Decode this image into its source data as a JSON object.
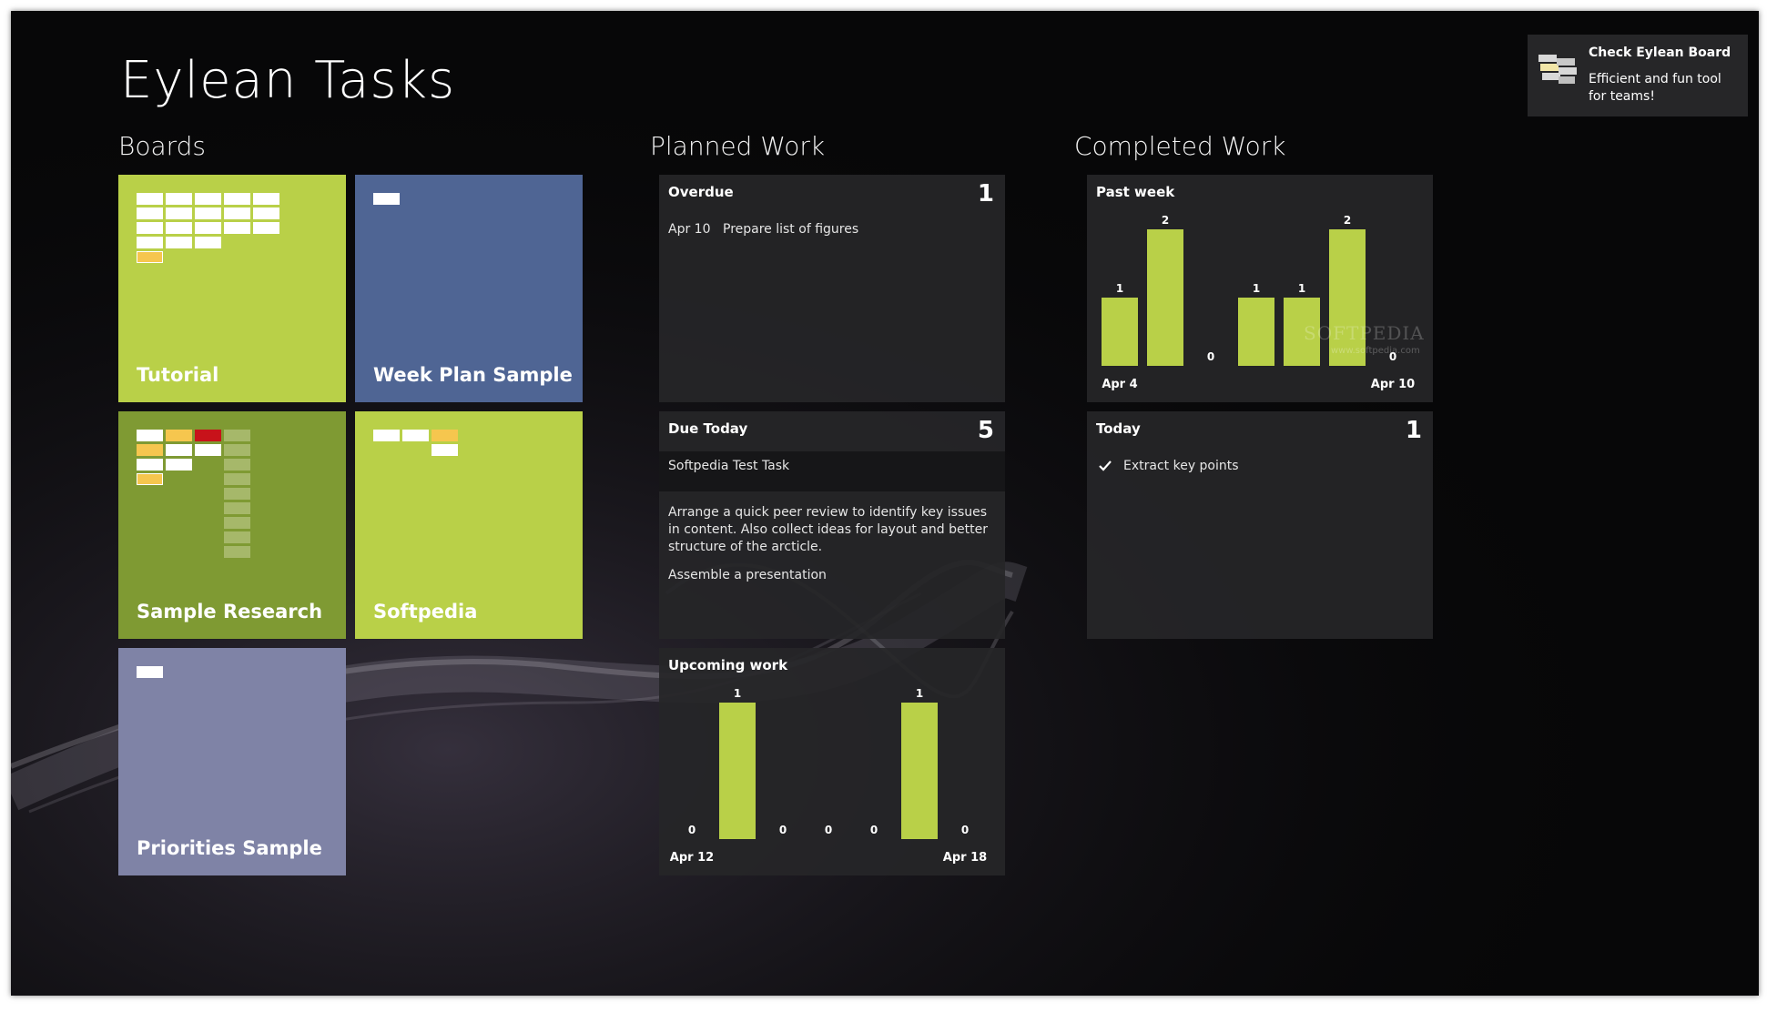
{
  "app": {
    "title": "Eylean Tasks"
  },
  "sections": {
    "boards": "Boards",
    "planned": "Planned Work",
    "completed": "Completed Work"
  },
  "boards": [
    {
      "label": "Tutorial",
      "color": "#b9d048"
    },
    {
      "label": "Week Plan Sample",
      "color": "#4f6594"
    },
    {
      "label": "Sample Research",
      "color": "#7f9a33"
    },
    {
      "label": "Softpedia",
      "color": "#b9d048"
    },
    {
      "label": "Priorities Sample",
      "color": "#7f83a6"
    }
  ],
  "overdue": {
    "title": "Overdue",
    "count": "1",
    "items": [
      {
        "date": "Apr 10",
        "text": "Prepare list of figures"
      }
    ]
  },
  "due_today": {
    "title": "Due Today",
    "count": "5",
    "items": [
      "Softpedia Test Task",
      "Arrange a quick peer review to identify key issues in content. Also collect ideas for layout and better structure of the arcticle.",
      "Assemble a presentation"
    ]
  },
  "upcoming": {
    "title": "Upcoming work"
  },
  "past_week": {
    "title": "Past week"
  },
  "today": {
    "title": "Today",
    "count": "1",
    "items": [
      "Extract key points"
    ]
  },
  "toast": {
    "title": "Check Eylean Board",
    "message": "Efficient and fun tool for teams!",
    "icon": "board-icon"
  },
  "watermark": {
    "text": "SOFTPEDIA",
    "sub": "www.softpedia.com"
  },
  "colors": {
    "accent": "#b9d048",
    "background": "#070708",
    "card": "#262628"
  },
  "chart_data": [
    {
      "type": "bar",
      "title": "Upcoming work",
      "categories": [
        "Apr 12",
        "",
        "",
        "",
        "",
        "",
        "Apr 18"
      ],
      "values": [
        0,
        1,
        0,
        0,
        0,
        1,
        0
      ],
      "ylim": [
        0,
        1
      ]
    },
    {
      "type": "bar",
      "title": "Past week",
      "categories": [
        "Apr 4",
        "",
        "",
        "",
        "",
        "",
        "Apr 10"
      ],
      "values": [
        1,
        2,
        0,
        1,
        1,
        2,
        0
      ],
      "ylim": [
        0,
        2
      ]
    }
  ]
}
